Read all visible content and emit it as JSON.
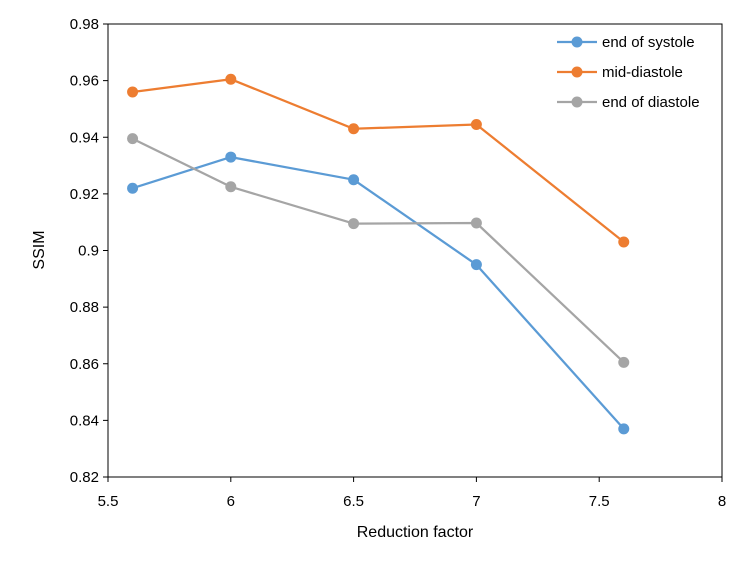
{
  "chart_data": {
    "type": "line",
    "title": "",
    "xlabel": "Reduction factor",
    "ylabel": "SSIM",
    "xlim": [
      5.5,
      8
    ],
    "ylim": [
      0.82,
      0.98
    ],
    "xticks": [
      5.5,
      6,
      6.5,
      7,
      7.5,
      8
    ],
    "xtick_labels": [
      "5.5",
      "6",
      "6.5",
      "7",
      "7.5",
      "8"
    ],
    "yticks": [
      0.82,
      0.84,
      0.86,
      0.88,
      0.9,
      0.92,
      0.94,
      0.96,
      0.98
    ],
    "ytick_labels": [
      "0.82",
      "0.84",
      "0.86",
      "0.88",
      "0.9",
      "0.92",
      "0.94",
      "0.96",
      "0.98"
    ],
    "grid": false,
    "legend_position": "top-right",
    "x": [
      5.6,
      6,
      6.5,
      7,
      7.6
    ],
    "series": [
      {
        "name": "end of systole",
        "color": "#5B9BD5",
        "values": [
          0.922,
          0.933,
          0.925,
          0.895,
          0.837
        ]
      },
      {
        "name": "mid-diastole",
        "color": "#ED7D31",
        "values": [
          0.956,
          0.9605,
          0.943,
          0.9445,
          0.903
        ]
      },
      {
        "name": "end of diastole",
        "color": "#A5A5A5",
        "values": [
          0.9395,
          0.9225,
          0.9095,
          0.9097,
          0.8605
        ]
      }
    ]
  }
}
